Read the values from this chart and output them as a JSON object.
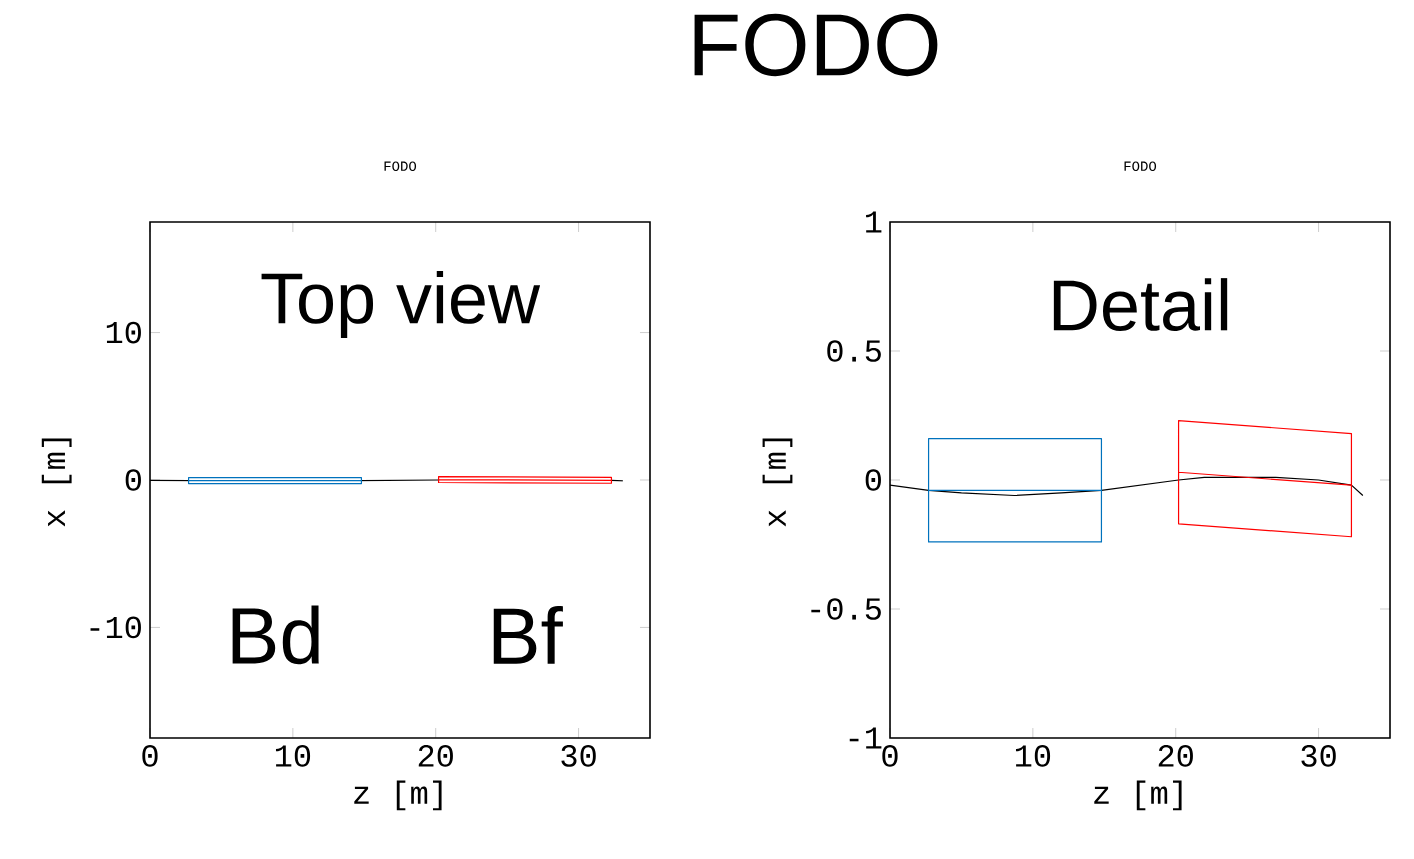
{
  "chart_data": [
    {
      "type": "line",
      "title": "FODO",
      "xlabel": "z [m]",
      "ylabel": "x [m]",
      "annotations": [
        "FODO",
        "Top view"
      ],
      "xlim": [
        0,
        35
      ],
      "ylim": [
        -17.5,
        17.5
      ],
      "xticks": [
        0,
        10,
        20,
        30
      ],
      "yticks": [
        -10,
        0,
        10
      ],
      "marker": "none",
      "line_style": "solid",
      "series": [
        {
          "color": "#000000",
          "x": [
            0,
            2.7,
            5,
            8.7,
            12,
            14.8,
            20.2,
            22,
            24.6,
            27,
            30,
            32.3,
            33.1
          ],
          "values": [
            -0.02,
            -0.04,
            null,
            null,
            null,
            -0.04,
            0,
            null,
            null,
            null,
            null,
            -0.02,
            -0.06
          ]
        },
        {
          "name": "Bd",
          "color": "#0072bd",
          "x": [
            2.7,
            2.7,
            14.8,
            14.8,
            2.7,
            2.7,
            14.8
          ],
          "values": [
            -0.04,
            0.16,
            0.16,
            -0.24,
            -0.24,
            -0.04,
            -0.04
          ]
        },
        {
          "name": "Bf",
          "color": "#ff0000",
          "x": [
            20.2,
            20.2,
            32.3,
            32.3,
            20.2,
            20.2,
            32.3
          ],
          "values": [
            0.03,
            0.23,
            0.18,
            -0.22,
            -0.17,
            0.03,
            -0.02
          ]
        }
      ]
    },
    {
      "type": "line",
      "title": "FODO",
      "xlabel": "z [m]",
      "ylabel": "x [m]",
      "annotations": [
        "Detail"
      ],
      "xlim": [
        0,
        35
      ],
      "ylim": [
        -1,
        1
      ],
      "xticks": [
        0,
        10,
        20,
        30
      ],
      "yticks": [
        -1,
        -0.5,
        0,
        0.5,
        1
      ],
      "marker": "none",
      "line_style": "solid",
      "series": [
        {
          "color": "#000000",
          "x": [
            0,
            2.7,
            5,
            8.7,
            12,
            14.8,
            20.2,
            22,
            24.6,
            27,
            30,
            32.3,
            33.1
          ],
          "values": [
            -0.02,
            -0.04,
            -0.05,
            -0.06,
            -0.05,
            -0.04,
            0,
            0.01,
            0.01,
            0.01,
            0,
            -0.02,
            -0.06
          ]
        },
        {
          "color": "#0072bd",
          "x": [
            2.7,
            2.7,
            14.8,
            14.8,
            2.7,
            2.7,
            14.8
          ],
          "values": [
            -0.04,
            0.16,
            0.16,
            -0.24,
            -0.24,
            -0.04,
            -0.04
          ]
        },
        {
          "color": "#ff0000",
          "x": [
            20.2,
            20.2,
            32.3,
            32.3,
            20.2,
            20.2,
            32.3
          ],
          "values": [
            0.03,
            0.23,
            0.18,
            -0.22,
            -0.17,
            0.03,
            -0.02
          ]
        }
      ]
    }
  ]
}
